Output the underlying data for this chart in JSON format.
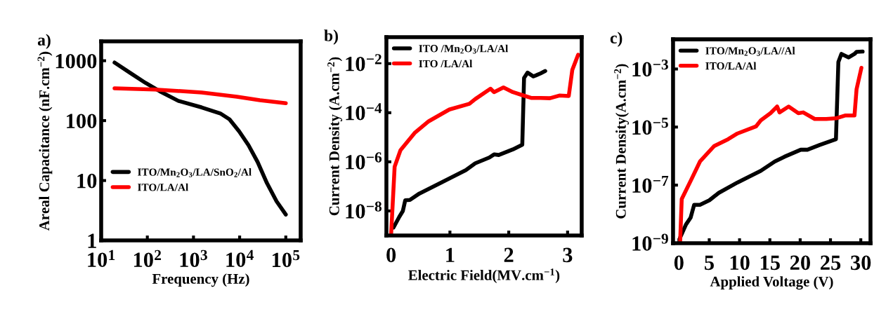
{
  "chart_data": [
    {
      "type": "line",
      "annotations": [
        "a)"
      ],
      "xlabel": "Frequency (Hz)",
      "ylabel": "Areal Capacitance (nF.cm$^{−2}$)",
      "log": "xy",
      "legend": "bottom left",
      "grid": false,
      "xlim": [
        10,
        210000
      ],
      "ylim": [
        1,
        2100
      ],
      "xticks": [
        {
          "value": 10,
          "label": "10$^{1}$"
        },
        {
          "value": 100,
          "label": "10$^{2}$"
        },
        {
          "value": 1000,
          "label": "10$^{3}$"
        },
        {
          "value": 10000,
          "label": "10$^{4}$"
        },
        {
          "value": 100000,
          "label": "10$^{5}$"
        }
      ],
      "yticks": [
        1,
        10,
        100,
        1000
      ],
      "series": [
        {
          "name": "ITO/Mn$_{2}$O$_{3}$/LA/SnO$_{2}$/Al",
          "color": "#000000",
          "x": [
            19.5,
            45.7,
            91,
            186,
            468,
            1510,
            3800,
            6030,
            9770,
            15500,
            24500,
            38900,
            63100,
            100000
          ],
          "values": [
            933,
            603,
            427,
            309,
            214,
            166,
            132,
            105,
            66,
            39,
            20.4,
            9.1,
            4.5,
            2.7
          ]
        },
        {
          "name": "ITO/LA/Al",
          "color": "#ff0000",
          "x": [
            19.5,
            145,
            1510,
            8710,
            27500,
            100000
          ],
          "values": [
            347,
            331,
            295,
            251,
            219,
            195
          ]
        }
      ]
    },
    {
      "type": "line",
      "annotations": [
        "b)"
      ],
      "xlabel": "Electric Field(MV.cm$^{−1}$)",
      "ylabel": "Current Density (A.cm$^{−2}$)",
      "log": "y",
      "legend": "top left",
      "grid": false,
      "xlim": [
        -0.08,
        3.24
      ],
      "ylim": [
        1e-09,
        0.12
      ],
      "xticks": [
        0,
        1,
        2,
        3
      ],
      "yticks": [
        {
          "value": 1e-08,
          "label": "10$^{−8}$"
        },
        {
          "value": 1e-06,
          "label": "10$^{−6}$"
        },
        {
          "value": 0.0001,
          "label": "10$^{−4}$"
        },
        {
          "value": 0.01,
          "label": "10$^{−2}$"
        }
      ],
      "series": [
        {
          "name": "ITO /Mn$_{2}$O$_{3}$/LA/Al",
          "color": "#000000",
          "x": [
            0.04,
            0.14,
            0.2,
            0.24,
            0.32,
            0.48,
            0.87,
            1.27,
            1.43,
            1.67,
            1.75,
            1.83,
            2.07,
            2.23,
            2.26,
            2.32,
            2.42,
            2.54,
            2.62
          ],
          "values": [
            2.1e-09,
            5.8e-09,
            1e-08,
            2.7e-08,
            2.8e-08,
            5.1e-08,
            1.5e-07,
            4.6e-07,
            8.7e-07,
            1.5e-06,
            2e-06,
            1.9e-06,
            3.2e-06,
            5e-06,
            0.0026,
            0.0043,
            0.003,
            0.004,
            0.005
          ]
        },
        {
          "name": "ITO /LA/Al",
          "color": "#ff0000",
          "x": [
            0,
            0.06,
            0.16,
            0.4,
            0.64,
            0.99,
            1.33,
            1.43,
            1.69,
            1.75,
            1.91,
            2.07,
            2.23,
            2.38,
            2.54,
            2.7,
            2.86,
            3.02,
            3.08,
            3.18
          ],
          "values": [
            1.1e-09,
            6.3e-07,
            3e-06,
            1.5e-05,
            4.5e-05,
            0.000135,
            0.00023,
            0.00036,
            0.00095,
            0.00069,
            0.00107,
            0.00069,
            0.00052,
            0.0004,
            0.0004,
            0.00039,
            0.0005,
            0.00048,
            0.0055,
            0.023
          ]
        }
      ]
    },
    {
      "type": "line",
      "annotations": [
        "c)"
      ],
      "xlabel": "Applied Voltage (V)",
      "ylabel": "Current Density(A.cm$^{−2}$)",
      "log": "y",
      "legend": "top left",
      "grid": false,
      "xlim": [
        -0.97,
        31.6
      ],
      "ylim": [
        1e-09,
        0.0105
      ],
      "xticks": [
        0,
        5,
        10,
        15,
        20,
        25,
        30
      ],
      "yticks": [
        {
          "value": 1e-09,
          "label": "10$^{−9}$"
        },
        {
          "value": 1e-07,
          "label": "10$^{−7}$"
        },
        {
          "value": 1e-05,
          "label": "10$^{−5}$"
        },
        {
          "value": 0.001,
          "label": "10$^{−3}$"
        }
      ],
      "series": [
        {
          "name": "ITO/Mn$_{2}$O$_{3}$/LA//Al",
          "color": "#000000",
          "x": [
            0.19,
            1.16,
            1.93,
            2.51,
            3.47,
            5.02,
            6.56,
            9.65,
            13.5,
            15.8,
            17.4,
            20.1,
            21.2,
            23.2,
            25.9,
            26.3,
            26.8,
            28.0,
            28.96,
            29.3,
            30.3
          ],
          "values": [
            1.55e-09,
            4.4e-09,
            7.6e-09,
            2.1e-08,
            2.1e-08,
            3e-08,
            5.4e-08,
            1.23e-07,
            3.1e-07,
            6.5e-07,
            9.5e-07,
            1.66e-06,
            1.66e-06,
            2.4e-06,
            3.8e-06,
            0.00174,
            0.0033,
            0.0025,
            0.0033,
            0.0039,
            0.004
          ]
        },
        {
          "name": "ITO/LA/Al",
          "color": "#ff0000",
          "x": [
            0.19,
            0.46,
            2.0,
            3.47,
            5.79,
            8.1,
            9.65,
            12.7,
            13.5,
            15.1,
            16.2,
            16.6,
            18.1,
            19.7,
            20.5,
            22.4,
            24.3,
            25.9,
            27.4,
            28.96,
            29.3,
            30.1
          ],
          "values": [
            1e-09,
            3.3e-08,
            1.5e-07,
            6.5e-07,
            2.2e-06,
            3.8e-06,
            6e-06,
            1.05e-05,
            1.7e-05,
            3e-05,
            5.1e-05,
            3.2e-05,
            5.1e-05,
            3e-05,
            3.2e-05,
            1.9e-05,
            1.9e-05,
            2e-05,
            2.5e-05,
            2.5e-05,
            0.0002,
            0.0011
          ]
        }
      ]
    }
  ]
}
